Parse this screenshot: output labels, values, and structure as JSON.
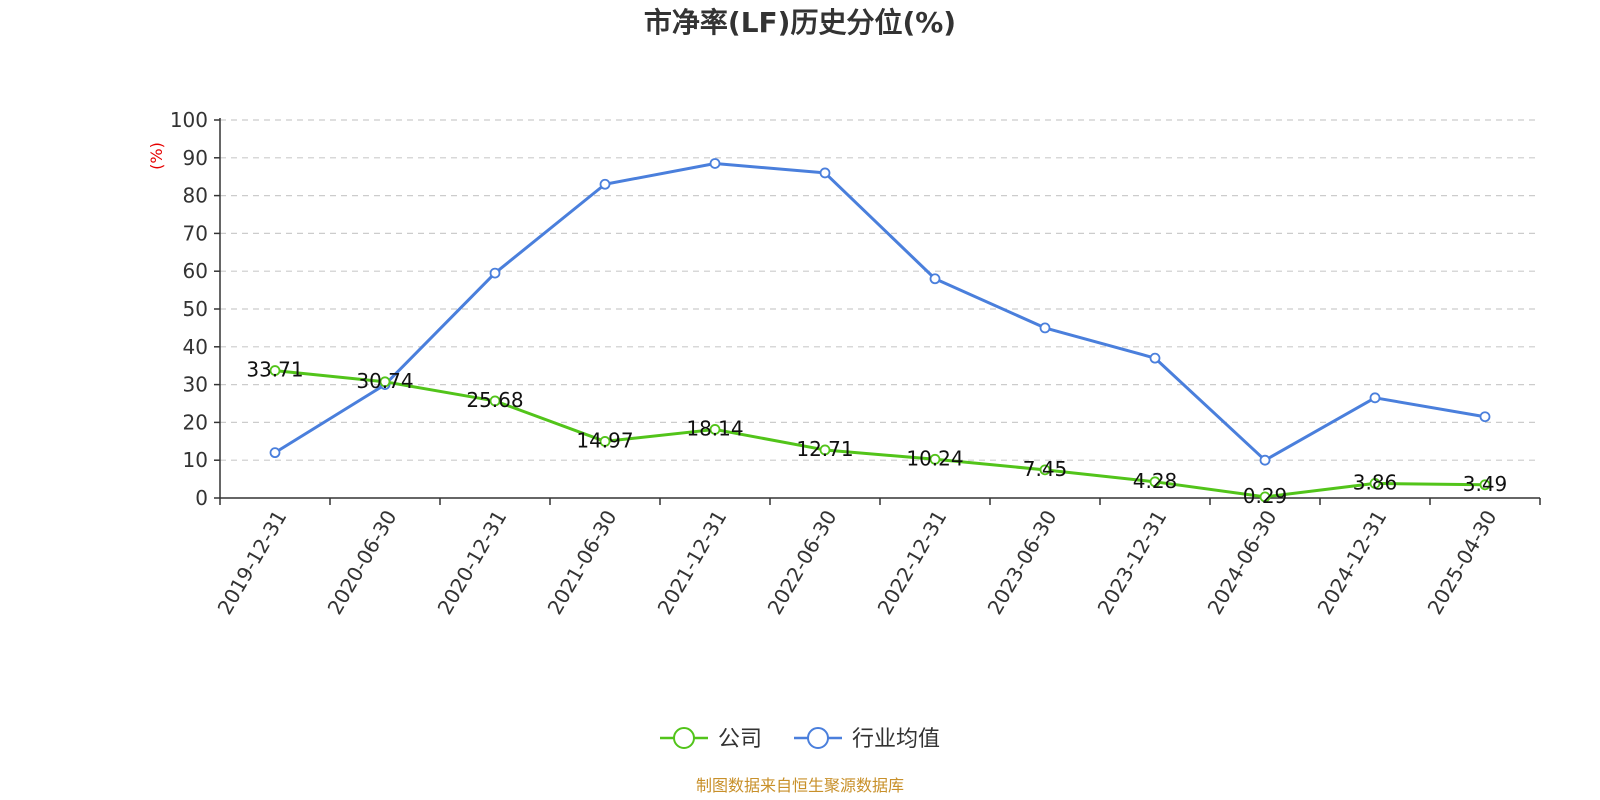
{
  "chart_data": {
    "type": "line",
    "title": "市净率(LF)历史分位(%)",
    "ylabel": "(%)",
    "ylim": [
      0,
      100
    ],
    "yticks": [
      0,
      10,
      20,
      30,
      40,
      50,
      60,
      70,
      80,
      90,
      100
    ],
    "grid": true,
    "legend_position": "bottom-center",
    "categories": [
      "2019-12-31",
      "2020-06-30",
      "2020-12-31",
      "2021-06-30",
      "2021-12-31",
      "2022-06-30",
      "2022-12-31",
      "2023-06-30",
      "2023-12-31",
      "2024-06-30",
      "2024-12-31",
      "2025-04-30"
    ],
    "series": [
      {
        "name": "公司",
        "color": "#52c41a",
        "show_labels": true,
        "values": [
          33.71,
          30.74,
          25.68,
          14.97,
          18.14,
          12.71,
          10.24,
          7.45,
          4.28,
          0.29,
          3.86,
          3.49
        ],
        "labels": [
          "33.71",
          "30.74",
          "25.68",
          "14.97",
          "18.14",
          "12.71",
          "10.24",
          "7.45",
          "4.28",
          "0.29",
          "3.86",
          "3.49"
        ]
      },
      {
        "name": "行业均值",
        "color": "#4a7fdc",
        "show_labels": false,
        "values": [
          12,
          30,
          59.5,
          83,
          88.5,
          86,
          58,
          45,
          37,
          10,
          26.5,
          21.5
        ]
      }
    ],
    "source": "制图数据来自恒生聚源数据库"
  }
}
